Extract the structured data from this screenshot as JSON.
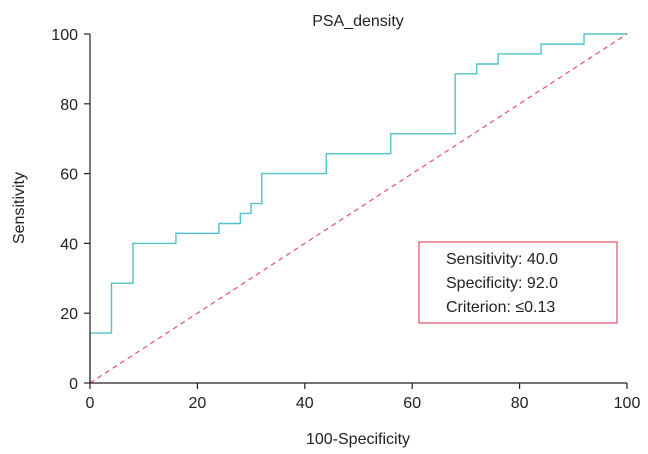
{
  "chart_data": {
    "type": "line",
    "title": "PSA_density",
    "xlabel": "100-Specificity",
    "ylabel": "Sensitivity",
    "xlim": [
      0,
      100
    ],
    "ylim": [
      0,
      100
    ],
    "xticks": [
      0,
      20,
      40,
      60,
      80,
      100
    ],
    "yticks": [
      0,
      20,
      40,
      60,
      80,
      100
    ],
    "grid": false,
    "series": [
      {
        "step": true,
        "color": "#4fc3c9",
        "x": [
          0,
          0,
          4,
          4,
          8,
          8,
          16,
          16,
          24,
          24,
          28,
          28,
          30,
          30,
          32,
          32,
          44,
          44,
          56,
          56,
          68,
          68,
          72,
          72,
          76,
          76,
          84,
          84,
          92,
          92,
          100
        ],
        "y": [
          0,
          14.3,
          14.3,
          28.6,
          28.6,
          40,
          40,
          42.9,
          42.9,
          45.7,
          45.7,
          48.6,
          48.6,
          51.4,
          51.4,
          60,
          60,
          65.7,
          65.7,
          71.4,
          71.4,
          88.6,
          88.6,
          91.4,
          91.4,
          94.3,
          94.3,
          97.1,
          97.1,
          100,
          100
        ]
      },
      {
        "reference": true,
        "dashed": true,
        "color": "#e8506a",
        "x": [
          0,
          100
        ],
        "y": [
          0,
          100
        ]
      }
    ],
    "annotation": {
      "lines": [
        "Sensitivity: 40.0",
        "Specificity: 92.0",
        "Criterion: ≤0.13"
      ],
      "border_color": "#e8506a",
      "placement": "lower-right"
    }
  }
}
